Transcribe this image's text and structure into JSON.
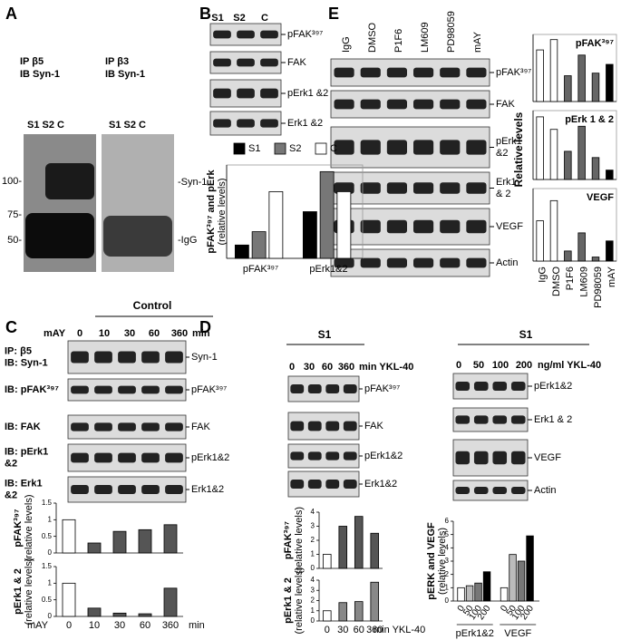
{
  "panel_labels": [
    "A",
    "B",
    "C",
    "D",
    "E"
  ],
  "panel_a": {
    "ip1": "IP β5",
    "ib1": "IB Syn-1",
    "ip2": "IP β3",
    "ib2": "IB Syn-1",
    "lanes_left": "S1 S2 C",
    "lanes_right": "S1 S2 C",
    "markers": [
      "100-",
      "75-",
      "50-"
    ],
    "bands": [
      "-Syn-1",
      "-IgG"
    ]
  },
  "panel_b": {
    "lanes": [
      "S1",
      "S2",
      "C"
    ],
    "right_labels": [
      [
        "pFAK³⁹⁷"
      ],
      [
        "FAK"
      ],
      [
        "pErk1 &2"
      ],
      [
        "Erk1 &2"
      ]
    ]
  },
  "panel_c": {
    "header": "Control",
    "treatment": "mAY",
    "times": [
      "0",
      "10",
      "30",
      "60",
      "360"
    ],
    "unit": "min",
    "left_labels": [
      [
        "IP: β5",
        "IB: Syn-1"
      ],
      [
        "IB: pFAK³⁹⁷"
      ],
      [
        "IB: FAK"
      ],
      [
        "IB: pErk1",
        "&2"
      ],
      [
        "IB: Erk1",
        "&2"
      ]
    ],
    "right_labels": [
      [
        "Syn-1"
      ],
      [
        "pFAK³⁹⁷"
      ],
      [
        "FAK"
      ],
      [
        "pErk1&2"
      ],
      [
        "Erk1&2"
      ]
    ]
  },
  "panel_d": {
    "header": "S1",
    "times": [
      "0",
      "30",
      "60",
      "360"
    ],
    "unit": "min YKL-40",
    "right_labels": [
      [
        "pFAK³⁹⁷"
      ],
      [
        "FAK"
      ],
      [
        "pErk1&2"
      ],
      [
        "Erk1&2"
      ]
    ]
  },
  "panel_d2": {
    "header": "S1",
    "doses": [
      "0",
      "50",
      "100",
      "200"
    ],
    "unit": "ng/ml YKL-40",
    "right_labels": [
      [
        "pErk1&2"
      ],
      [
        "Erk1 & 2"
      ],
      [
        "VEGF"
      ],
      [
        "Actin"
      ]
    ]
  },
  "panel_e": {
    "lanes": [
      "IgG",
      "DMSO",
      "P1F6",
      "LM609",
      "PD98059",
      "mAY"
    ],
    "right_labels": [
      [
        "pFAK³⁹⁷"
      ],
      [
        "FAK"
      ],
      [
        "pErk1",
        "&2"
      ],
      [
        "Erk1",
        "& 2"
      ],
      [
        "VEGF"
      ],
      [
        "Actin"
      ]
    ],
    "ylabel": "Relative levels"
  },
  "chart_data": [
    {
      "type": "bar",
      "ylabel": [
        "pFAK³⁹⁷ and pErk",
        "(relative levels)"
      ],
      "categories": [
        "pFAK³⁹⁷",
        "pErk1&2"
      ],
      "series": [
        {
          "name": "S1",
          "color": "#000000",
          "values": [
            0.2,
            0.7
          ]
        },
        {
          "name": "S2",
          "color": "#777777",
          "values": [
            0.4,
            1.3
          ]
        },
        {
          "name": "C",
          "color": "#ffffff",
          "values": [
            1.0,
            1.0
          ]
        }
      ],
      "ylim": [
        0,
        1.4
      ]
    },
    {
      "type": "bar",
      "title": "pFAK³⁹⁷",
      "values": [
        1.0,
        1.2,
        0.5,
        0.9,
        0.55,
        0.72
      ],
      "colors": [
        "#ffffff",
        "#ffffff",
        "#666666",
        "#666666",
        "#666666",
        "#000000"
      ],
      "ylim": [
        0,
        1.3
      ]
    },
    {
      "type": "bar",
      "title": "pErk 1 & 2",
      "values": [
        1.0,
        0.8,
        0.45,
        0.85,
        0.35,
        0.15
      ],
      "colors": [
        "#ffffff",
        "#ffffff",
        "#666666",
        "#666666",
        "#666666",
        "#000000"
      ],
      "ylim": [
        0,
        1.1
      ]
    },
    {
      "type": "bar",
      "title": "VEGF",
      "categories": [
        "IgG",
        "DMSO",
        "P1F6",
        "LM609",
        "PD98059",
        "mAY"
      ],
      "values": [
        1.0,
        1.5,
        0.25,
        0.7,
        0.1,
        0.5
      ],
      "colors": [
        "#ffffff",
        "#ffffff",
        "#666666",
        "#666666",
        "#666666",
        "#000000"
      ],
      "ylim": [
        0,
        1.8
      ]
    },
    {
      "type": "bar",
      "ylabel": [
        "pFAK³⁹⁷",
        "(relative levels)"
      ],
      "values": [
        1.0,
        0.3,
        0.65,
        0.7,
        0.85
      ],
      "colors": [
        "#ffffff",
        "#555555",
        "#555555",
        "#555555",
        "#555555"
      ],
      "ylim": [
        0,
        1.5
      ],
      "yticks": [
        0,
        0.5,
        1,
        1.5
      ]
    },
    {
      "type": "bar",
      "ylabel": [
        "pErk1 & 2",
        "(relative levels)"
      ],
      "categories": [
        "0",
        "10",
        "30",
        "60",
        "360"
      ],
      "xlabel_left": "mAY",
      "xlabel": "min",
      "values": [
        1.0,
        0.25,
        0.1,
        0.08,
        0.85
      ],
      "colors": [
        "#ffffff",
        "#555555",
        "#555555",
        "#555555",
        "#555555"
      ],
      "ylim": [
        0,
        1.5
      ],
      "yticks": [
        0,
        0.5,
        1,
        1.5
      ]
    },
    {
      "type": "bar",
      "ylabel": [
        "pFAK³⁹⁷",
        "(relative levels)"
      ],
      "values": [
        1.0,
        3.0,
        3.7,
        2.5
      ],
      "colors": [
        "#ffffff",
        "#555555",
        "#555555",
        "#555555"
      ],
      "ylim": [
        0,
        4
      ],
      "yticks": [
        0,
        1,
        2,
        3,
        4
      ]
    },
    {
      "type": "bar",
      "ylabel": [
        "pErk1 & 2",
        "(relative levels)"
      ],
      "categories": [
        "0",
        "30",
        "60",
        "360"
      ],
      "xlabel": "min YKL-40",
      "values": [
        1.0,
        1.8,
        1.9,
        3.8
      ],
      "colors": [
        "#ffffff",
        "#888888",
        "#888888",
        "#888888"
      ],
      "ylim": [
        0,
        4
      ],
      "yticks": [
        0,
        1,
        2,
        3,
        4
      ]
    },
    {
      "type": "bar",
      "ylabel": [
        "pERK and VEGF",
        "(relative levels)"
      ],
      "categories": [
        "0",
        "50",
        "100",
        "200"
      ],
      "series": [
        {
          "name": "pErk1&2",
          "values": [
            1.0,
            1.15,
            1.35,
            2.2
          ]
        },
        {
          "name": "VEGF",
          "values": [
            1.0,
            3.5,
            3.0,
            4.9
          ]
        }
      ],
      "colors": [
        "#ffffff",
        "#bbbbbb",
        "#777777",
        "#000000"
      ],
      "ylim": [
        0,
        6
      ],
      "yticks": [
        0,
        1,
        2,
        3,
        4,
        5,
        6
      ]
    }
  ]
}
